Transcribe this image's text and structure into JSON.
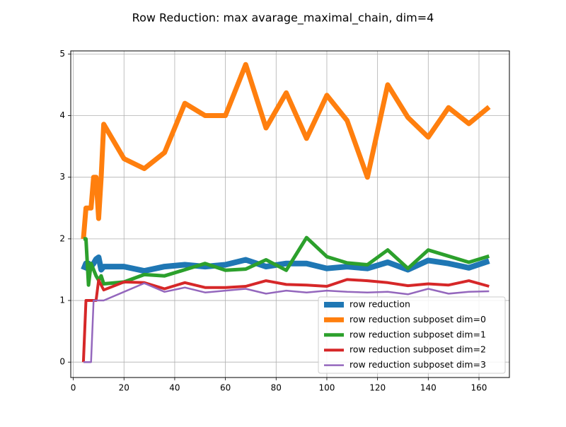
{
  "chart_data": {
    "type": "line",
    "title": "Row Reduction: max avarage_maximal_chain, dim=4",
    "xlabel": "",
    "ylabel": "",
    "xlim": [
      -1.0,
      172.0
    ],
    "ylim": [
      -0.25,
      5.05
    ],
    "xticks": [
      0,
      20,
      40,
      60,
      80,
      100,
      120,
      140,
      160
    ],
    "yticks": [
      0,
      1,
      2,
      3,
      4,
      5
    ],
    "grid": true,
    "legend_position": "lower right",
    "series": [
      {
        "name": "row reduction",
        "color": "#1f77b4",
        "linewidth": 8,
        "x": [
          4,
          5,
          6,
          7,
          8,
          9,
          10,
          11,
          12,
          20,
          28,
          36,
          44,
          52,
          60,
          68,
          76,
          84,
          92,
          100,
          108,
          116,
          124,
          132,
          140,
          148,
          156,
          164
        ],
        "y": [
          1.5,
          1.6,
          1.6,
          1.55,
          1.6,
          1.67,
          1.7,
          1.5,
          1.55,
          1.55,
          1.48,
          1.55,
          1.58,
          1.55,
          1.58,
          1.66,
          1.55,
          1.6,
          1.6,
          1.52,
          1.55,
          1.52,
          1.62,
          1.5,
          1.65,
          1.6,
          1.53,
          1.64
        ]
      },
      {
        "name": "row reduction subposet dim=0",
        "color": "#ff7f0e",
        "linewidth": 7,
        "x": [
          4,
          5,
          6,
          7,
          8,
          9,
          10,
          11,
          12,
          20,
          28,
          36,
          44,
          52,
          60,
          68,
          76,
          84,
          92,
          100,
          108,
          116,
          124,
          132,
          140,
          148,
          156,
          164
        ],
        "y": [
          2.0,
          2.5,
          2.5,
          2.5,
          3.0,
          3.0,
          2.33,
          3.0,
          3.86,
          3.3,
          3.14,
          3.4,
          4.2,
          4.0,
          4.0,
          4.83,
          3.8,
          4.37,
          3.63,
          4.33,
          3.92,
          3.0,
          4.5,
          3.97,
          3.65,
          4.13,
          3.87,
          4.14
        ]
      },
      {
        "name": "row reduction subposet dim=1",
        "color": "#2ca02c",
        "linewidth": 5,
        "x": [
          4,
          5,
          6,
          7,
          8,
          9,
          10,
          11,
          12,
          20,
          28,
          36,
          44,
          52,
          60,
          68,
          76,
          84,
          92,
          100,
          108,
          116,
          124,
          132,
          140,
          148,
          156,
          164
        ],
        "y": [
          2.0,
          2.0,
          1.25,
          1.6,
          1.5,
          1.4,
          1.33,
          1.4,
          1.27,
          1.3,
          1.42,
          1.4,
          1.5,
          1.6,
          1.49,
          1.51,
          1.66,
          1.49,
          2.02,
          1.71,
          1.61,
          1.58,
          1.82,
          1.52,
          1.82,
          1.72,
          1.62,
          1.72
        ]
      },
      {
        "name": "row reduction subposet dim=2",
        "color": "#d62728",
        "linewidth": 4,
        "x": [
          4,
          5,
          6,
          7,
          8,
          9,
          10,
          11,
          12,
          20,
          28,
          36,
          44,
          52,
          60,
          68,
          76,
          84,
          92,
          100,
          108,
          116,
          124,
          132,
          140,
          148,
          156,
          164
        ],
        "y": [
          0.0,
          1.0,
          1.0,
          1.0,
          1.0,
          1.0,
          1.33,
          1.25,
          1.17,
          1.3,
          1.29,
          1.19,
          1.29,
          1.21,
          1.21,
          1.23,
          1.32,
          1.26,
          1.25,
          1.23,
          1.34,
          1.32,
          1.29,
          1.24,
          1.27,
          1.25,
          1.32,
          1.23
        ]
      },
      {
        "name": "row reduction subposet dim=3",
        "color": "#9467bd",
        "linewidth": 2.5,
        "x": [
          4,
          5,
          6,
          7,
          8,
          9,
          10,
          11,
          12,
          20,
          28,
          36,
          44,
          52,
          60,
          68,
          76,
          84,
          92,
          100,
          108,
          116,
          124,
          132,
          140,
          148,
          156,
          164
        ],
        "y": [
          0.0,
          0.0,
          0.0,
          0.0,
          1.0,
          1.0,
          1.0,
          1.0,
          1.0,
          1.14,
          1.28,
          1.14,
          1.21,
          1.13,
          1.16,
          1.19,
          1.11,
          1.16,
          1.13,
          1.16,
          1.14,
          1.13,
          1.14,
          1.1,
          1.19,
          1.11,
          1.14,
          1.15
        ]
      }
    ]
  }
}
